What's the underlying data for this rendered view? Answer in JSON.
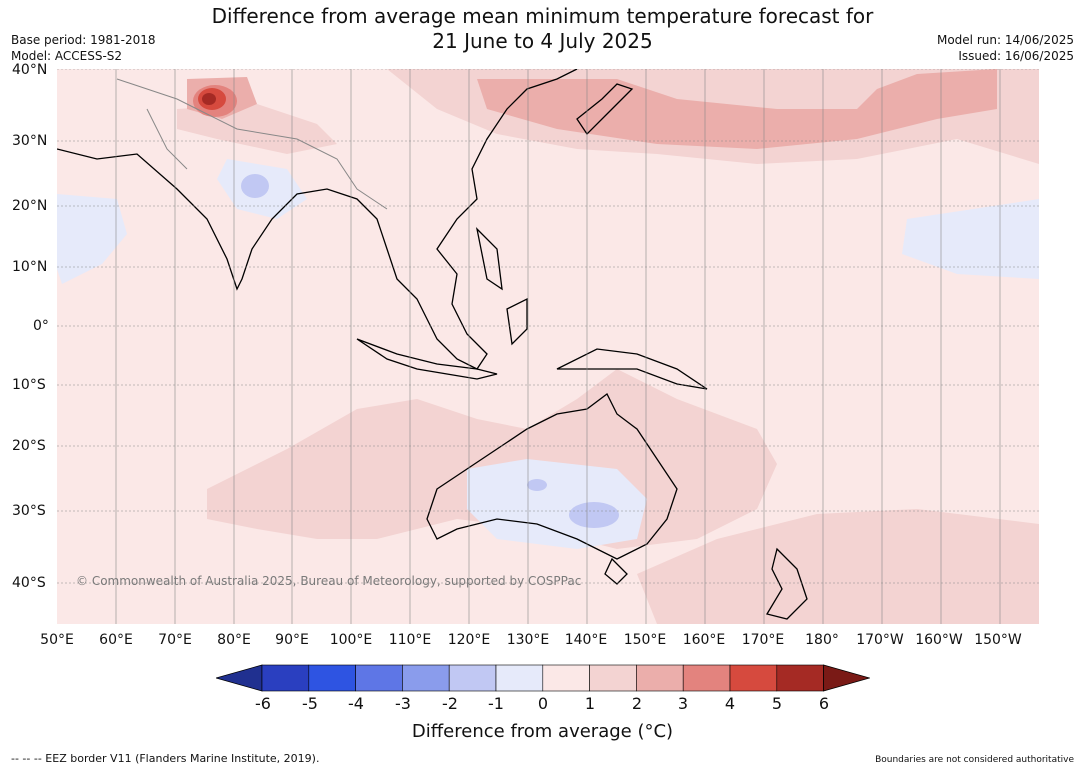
{
  "title": {
    "line1": "Difference from average mean minimum temperature forecast for",
    "line2": "21 June to 4 July 2025"
  },
  "meta_left": {
    "base_period": "Base period: 1981-2018",
    "model": "Model: ACCESS-S2"
  },
  "meta_right": {
    "model_run": "Model run: 14/06/2025",
    "issued": "Issued: 16/06/2025"
  },
  "map": {
    "latitude_labels": [
      "40°N",
      "30°N",
      "20°N",
      "10°N",
      "0°",
      "10°S",
      "20°S",
      "30°S",
      "40°S"
    ],
    "longitude_labels": [
      "50°E",
      "60°E",
      "70°E",
      "80°E",
      "90°E",
      "100°E",
      "110°E",
      "120°E",
      "130°E",
      "140°E",
      "150°E",
      "160°E",
      "170°E",
      "180°",
      "170°W",
      "160°W",
      "150°W"
    ],
    "copyright": "© Commonwealth of Australia 2025, Bureau of Meteorology, supported by COSPPac",
    "colors": {
      "background_0_1": "#fbe8e7",
      "band_1_2": "#f3d3d2",
      "band_2_3": "#ebaeab",
      "band_3_4": "#e3837e",
      "band_4_5": "#d64a3e",
      "band_5_6": "#a52a24",
      "band_gt6": "#7a1a16",
      "band_m1_0": "#e6eafa",
      "band_m2_m1": "#c1c8f3",
      "land_outline": "#000000",
      "country_border": "#888888"
    }
  },
  "colorbar": {
    "ticks": [
      "-6",
      "-5",
      "-4",
      "-3",
      "-2",
      "-1",
      "0",
      "1",
      "2",
      "3",
      "4",
      "5",
      "6"
    ],
    "colors": [
      "#203090",
      "#2a3fc0",
      "#2e54e2",
      "#5e76e6",
      "#8a9cec",
      "#c1c8f3",
      "#e6eafa",
      "#fbe8e7",
      "#f3d3d2",
      "#ebaeab",
      "#e3837e",
      "#d64a3e",
      "#a52a24",
      "#7a1a16"
    ],
    "label": "Difference from average (°C)"
  },
  "footer": {
    "eez": "--  --  -- EEZ border V11 (Flanders Marine Institute, 2019).",
    "disclaimer": "Boundaries are not considered authoritative"
  }
}
